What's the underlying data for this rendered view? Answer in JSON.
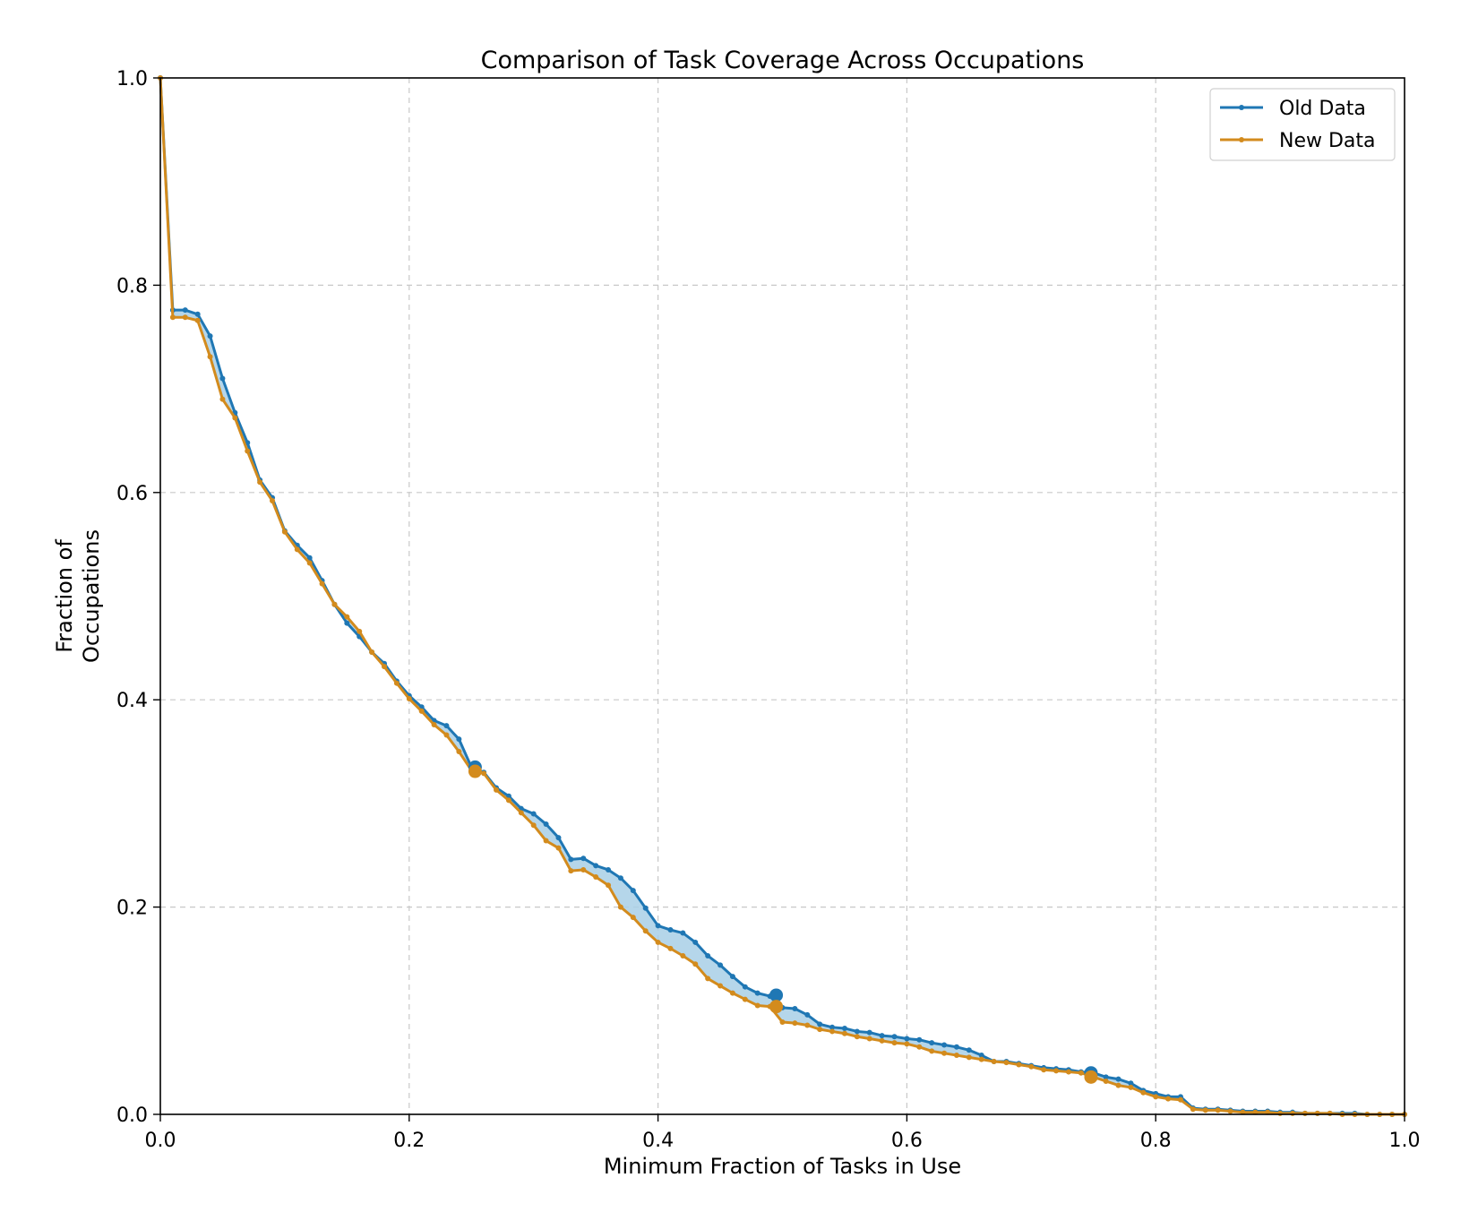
{
  "chart_data": {
    "type": "line",
    "title": "Comparison of Task Coverage Across Occupations",
    "xlabel": "Minimum Fraction of Tasks in Use",
    "ylabel": "Fraction of Occupations",
    "ylabel_lines": [
      "Fraction of",
      "Occupations"
    ],
    "xlim": [
      0.0,
      1.0
    ],
    "ylim": [
      0.0,
      1.0
    ],
    "xticks": [
      "0.0",
      "0.2",
      "0.4",
      "0.6",
      "0.8",
      "1.0"
    ],
    "yticks": [
      "0.0",
      "0.2",
      "0.4",
      "0.6",
      "0.8",
      "1.0"
    ],
    "grid": true,
    "legend_position": "top-right",
    "fill_between": true,
    "fill_color": "#a8cfe6",
    "series": [
      {
        "name": "Old Data",
        "color": "#1f77b4",
        "x": [
          0.0,
          0.01,
          0.02,
          0.03,
          0.04,
          0.05,
          0.06,
          0.07,
          0.08,
          0.09,
          0.1,
          0.11,
          0.12,
          0.13,
          0.14,
          0.15,
          0.16,
          0.17,
          0.18,
          0.19,
          0.2,
          0.21,
          0.22,
          0.23,
          0.24,
          0.25,
          0.26,
          0.27,
          0.28,
          0.29,
          0.3,
          0.31,
          0.32,
          0.33,
          0.34,
          0.35,
          0.36,
          0.37,
          0.38,
          0.39,
          0.4,
          0.41,
          0.42,
          0.43,
          0.44,
          0.45,
          0.46,
          0.47,
          0.48,
          0.49,
          0.5,
          0.51,
          0.52,
          0.53,
          0.54,
          0.55,
          0.56,
          0.57,
          0.58,
          0.59,
          0.6,
          0.61,
          0.62,
          0.63,
          0.64,
          0.65,
          0.66,
          0.67,
          0.68,
          0.69,
          0.7,
          0.71,
          0.72,
          0.73,
          0.74,
          0.75,
          0.76,
          0.77,
          0.78,
          0.79,
          0.8,
          0.81,
          0.82,
          0.83,
          0.84,
          0.85,
          0.86,
          0.87,
          0.88,
          0.89,
          0.9,
          0.91,
          0.92,
          0.93,
          0.94,
          0.95,
          0.96,
          0.97,
          0.98,
          0.99,
          1.0
        ],
        "y": [
          1.0,
          0.776,
          0.776,
          0.772,
          0.751,
          0.71,
          0.677,
          0.648,
          0.612,
          0.595,
          0.563,
          0.549,
          0.537,
          0.515,
          0.492,
          0.474,
          0.461,
          0.446,
          0.435,
          0.418,
          0.404,
          0.393,
          0.38,
          0.375,
          0.362,
          0.335,
          0.33,
          0.315,
          0.307,
          0.295,
          0.29,
          0.28,
          0.267,
          0.246,
          0.247,
          0.24,
          0.236,
          0.228,
          0.216,
          0.199,
          0.182,
          0.178,
          0.175,
          0.166,
          0.153,
          0.144,
          0.133,
          0.123,
          0.117,
          0.114,
          0.103,
          0.102,
          0.096,
          0.087,
          0.084,
          0.083,
          0.08,
          0.079,
          0.076,
          0.075,
          0.073,
          0.072,
          0.069,
          0.067,
          0.065,
          0.062,
          0.057,
          0.051,
          0.051,
          0.049,
          0.047,
          0.045,
          0.044,
          0.043,
          0.041,
          0.04,
          0.036,
          0.034,
          0.03,
          0.023,
          0.02,
          0.017,
          0.017,
          0.006,
          0.005,
          0.005,
          0.004,
          0.003,
          0.003,
          0.003,
          0.002,
          0.002,
          0.001,
          0.001,
          0.001,
          0.001,
          0.001,
          0.0,
          0.0,
          0.0,
          0.0
        ]
      },
      {
        "name": "New Data",
        "color": "#d38b1d",
        "x": [
          0.0,
          0.01,
          0.02,
          0.03,
          0.04,
          0.05,
          0.06,
          0.07,
          0.08,
          0.09,
          0.1,
          0.11,
          0.12,
          0.13,
          0.14,
          0.15,
          0.16,
          0.17,
          0.18,
          0.19,
          0.2,
          0.21,
          0.22,
          0.23,
          0.24,
          0.25,
          0.26,
          0.27,
          0.28,
          0.29,
          0.3,
          0.31,
          0.32,
          0.33,
          0.34,
          0.35,
          0.36,
          0.37,
          0.38,
          0.39,
          0.4,
          0.41,
          0.42,
          0.43,
          0.44,
          0.45,
          0.46,
          0.47,
          0.48,
          0.49,
          0.5,
          0.51,
          0.52,
          0.53,
          0.54,
          0.55,
          0.56,
          0.57,
          0.58,
          0.59,
          0.6,
          0.61,
          0.62,
          0.63,
          0.64,
          0.65,
          0.66,
          0.67,
          0.68,
          0.69,
          0.7,
          0.71,
          0.72,
          0.73,
          0.74,
          0.75,
          0.76,
          0.77,
          0.78,
          0.79,
          0.8,
          0.81,
          0.82,
          0.83,
          0.84,
          0.85,
          0.86,
          0.87,
          0.88,
          0.89,
          0.9,
          0.91,
          0.92,
          0.93,
          0.94,
          0.95,
          0.96,
          0.97,
          0.98,
          0.99,
          1.0
        ],
        "y": [
          1.0,
          0.769,
          0.769,
          0.766,
          0.731,
          0.69,
          0.672,
          0.64,
          0.61,
          0.592,
          0.562,
          0.545,
          0.532,
          0.512,
          0.492,
          0.48,
          0.466,
          0.446,
          0.432,
          0.416,
          0.401,
          0.389,
          0.376,
          0.366,
          0.35,
          0.332,
          0.329,
          0.313,
          0.303,
          0.291,
          0.279,
          0.264,
          0.257,
          0.235,
          0.236,
          0.229,
          0.221,
          0.2,
          0.19,
          0.177,
          0.166,
          0.16,
          0.153,
          0.145,
          0.131,
          0.124,
          0.117,
          0.111,
          0.105,
          0.104,
          0.089,
          0.088,
          0.086,
          0.082,
          0.08,
          0.078,
          0.075,
          0.073,
          0.071,
          0.069,
          0.068,
          0.065,
          0.061,
          0.059,
          0.057,
          0.055,
          0.053,
          0.051,
          0.05,
          0.048,
          0.046,
          0.043,
          0.042,
          0.041,
          0.04,
          0.036,
          0.032,
          0.028,
          0.026,
          0.021,
          0.017,
          0.015,
          0.014,
          0.005,
          0.004,
          0.004,
          0.003,
          0.002,
          0.002,
          0.002,
          0.001,
          0.001,
          0.001,
          0.001,
          0.001,
          0.0,
          0.0,
          0.0,
          0.0,
          0.0,
          0.0
        ]
      }
    ],
    "highlight_points": [
      {
        "series": "Old Data",
        "x": [
          0.253,
          0.495,
          0.748
        ],
        "y": [
          0.335,
          0.115,
          0.04
        ]
      },
      {
        "series": "New Data",
        "x": [
          0.253,
          0.495,
          0.748
        ],
        "y": [
          0.331,
          0.104,
          0.036
        ]
      }
    ]
  }
}
